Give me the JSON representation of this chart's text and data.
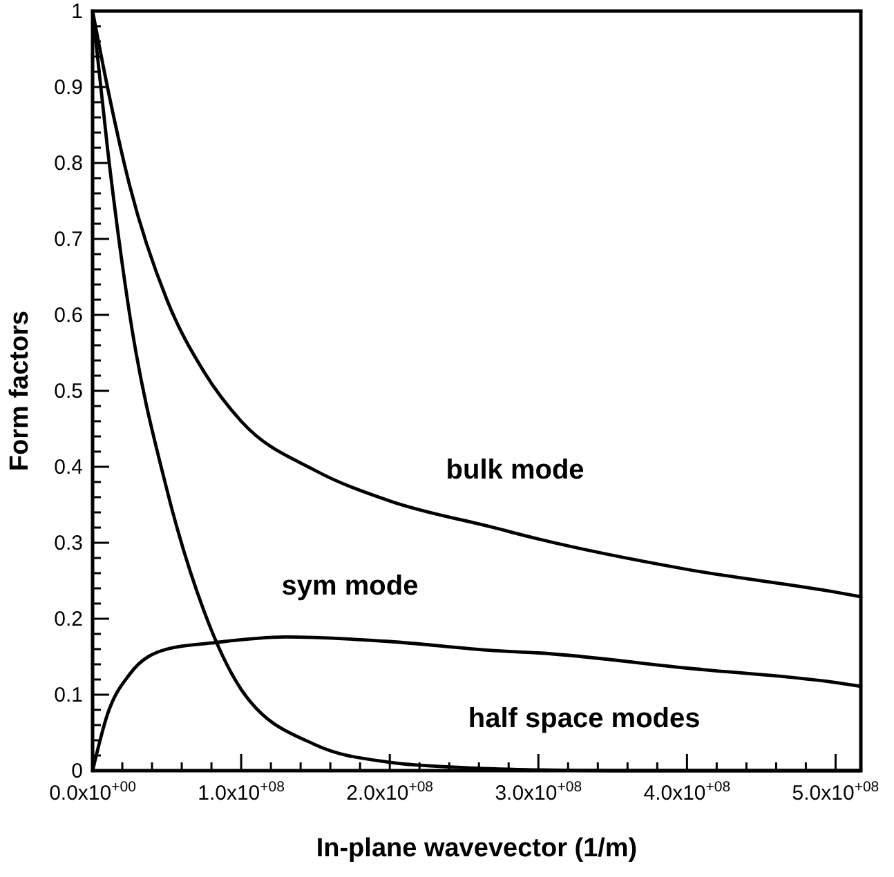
{
  "chart_data": {
    "type": "line",
    "xlabel": "In-plane wavevector (1/m)",
    "ylabel": "Form factors",
    "xlim": [
      0,
      517000000
    ],
    "ylim": [
      0,
      1
    ],
    "xticks": [
      {
        "value": 0,
        "label": "0.0x10$^{+00}$"
      },
      {
        "value": 20000000,
        "label": null
      },
      {
        "value": 40000000,
        "label": null
      },
      {
        "value": 60000000,
        "label": null
      },
      {
        "value": 80000000,
        "label": null
      },
      {
        "value": 100000000,
        "label": "1.0x10$^{+08}$"
      },
      {
        "value": 120000000,
        "label": null
      },
      {
        "value": 140000000,
        "label": null
      },
      {
        "value": 160000000,
        "label": null
      },
      {
        "value": 180000000,
        "label": null
      },
      {
        "value": 200000000,
        "label": "2.0x10$^{+08}$"
      },
      {
        "value": 220000000,
        "label": null
      },
      {
        "value": 240000000,
        "label": null
      },
      {
        "value": 260000000,
        "label": null
      },
      {
        "value": 280000000,
        "label": null
      },
      {
        "value": 300000000,
        "label": "3.0x10$^{+08}$"
      },
      {
        "value": 320000000,
        "label": null
      },
      {
        "value": 340000000,
        "label": null
      },
      {
        "value": 360000000,
        "label": null
      },
      {
        "value": 380000000,
        "label": null
      },
      {
        "value": 400000000,
        "label": "4.0x10$^{+08}$"
      },
      {
        "value": 420000000,
        "label": null
      },
      {
        "value": 440000000,
        "label": null
      },
      {
        "value": 460000000,
        "label": null
      },
      {
        "value": 480000000,
        "label": null
      },
      {
        "value": 500000000,
        "label": "5.0x10$^{+08}$"
      }
    ],
    "yticks": [
      0,
      {
        "value": 0.02,
        "label": null
      },
      {
        "value": 0.04,
        "label": null
      },
      {
        "value": 0.06,
        "label": null
      },
      {
        "value": 0.08,
        "label": null
      },
      0.1,
      {
        "value": 0.12,
        "label": null
      },
      {
        "value": 0.14,
        "label": null
      },
      {
        "value": 0.16,
        "label": null
      },
      {
        "value": 0.18,
        "label": null
      },
      0.2,
      {
        "value": 0.22,
        "label": null
      },
      {
        "value": 0.24,
        "label": null
      },
      {
        "value": 0.26,
        "label": null
      },
      {
        "value": 0.28,
        "label": null
      },
      0.3,
      {
        "value": 0.32,
        "label": null
      },
      {
        "value": 0.34,
        "label": null
      },
      {
        "value": 0.36,
        "label": null
      },
      {
        "value": 0.38,
        "label": null
      },
      0.4,
      {
        "value": 0.42,
        "label": null
      },
      {
        "value": 0.44,
        "label": null
      },
      {
        "value": 0.46,
        "label": null
      },
      {
        "value": 0.48,
        "label": null
      },
      0.5,
      {
        "value": 0.52,
        "label": null
      },
      {
        "value": 0.54,
        "label": null
      },
      {
        "value": 0.56,
        "label": null
      },
      {
        "value": 0.58,
        "label": null
      },
      0.6,
      {
        "value": 0.62,
        "label": null
      },
      {
        "value": 0.64,
        "label": null
      },
      {
        "value": 0.66,
        "label": null
      },
      {
        "value": 0.68,
        "label": null
      },
      0.7,
      {
        "value": 0.72,
        "label": null
      },
      {
        "value": 0.74,
        "label": null
      },
      {
        "value": 0.76,
        "label": null
      },
      {
        "value": 0.78,
        "label": null
      },
      0.8,
      {
        "value": 0.82,
        "label": null
      },
      {
        "value": 0.84,
        "label": null
      },
      {
        "value": 0.86,
        "label": null
      },
      {
        "value": 0.88,
        "label": null
      },
      0.9,
      {
        "value": 0.92,
        "label": null
      },
      {
        "value": 0.94,
        "label": null
      },
      {
        "value": 0.96,
        "label": null
      },
      {
        "value": 0.98,
        "label": null
      },
      1
    ],
    "grid": false,
    "marker": "none",
    "line_style": "solid",
    "series": [
      {
        "color": "#000000",
        "x": [
          0,
          10000000,
          25000000,
          50000000,
          75000000,
          100000000,
          150000000,
          200000000,
          270000000,
          300000000,
          400000000,
          500000000,
          517000000
        ],
        "values": [
          1,
          0.9,
          0.77,
          0.62,
          0.525,
          0.46,
          0.395,
          0.355,
          0.32,
          0.305,
          0.265,
          0.235,
          0.229
        ]
      },
      {
        "color": "#000000",
        "x": [
          0,
          10000000,
          25000000,
          50000000,
          75000000,
          100000000,
          150000000,
          200000000,
          250000000,
          300000000,
          350000000,
          517000000
        ],
        "values": [
          1,
          0.82,
          0.6,
          0.37,
          0.21,
          0.107,
          0.034,
          0.011,
          0.004,
          0.001,
          0,
          0
        ]
      },
      {
        "color": "#000000",
        "x": [
          0,
          10000000,
          25000000,
          50000000,
          80000000,
          130000000,
          200000000,
          270000000,
          300000000,
          400000000,
          500000000,
          517000000
        ],
        "values": [
          0,
          0.074,
          0.127,
          0.16,
          0.168,
          0.176,
          0.17,
          0.158,
          0.155,
          0.135,
          0.116,
          0.111
        ]
      }
    ],
    "annotations": [
      "bulk mode",
      "sym mode",
      "half space modes"
    ]
  }
}
